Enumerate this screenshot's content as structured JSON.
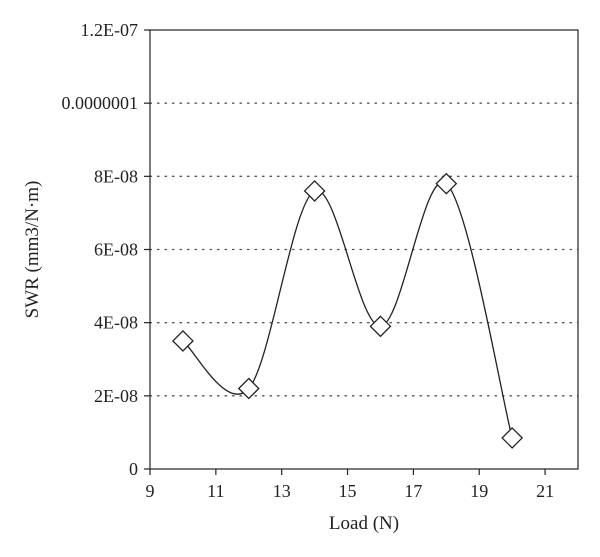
{
  "chart_data": {
    "type": "scatter",
    "title": "",
    "xlabel": "Load (N)",
    "ylabel": "SWR (mm3/N·m)",
    "xlim": [
      9,
      22
    ],
    "ylim": [
      0,
      1.2e-07
    ],
    "x_ticks": [
      9,
      11,
      13,
      15,
      17,
      19,
      21
    ],
    "x_tick_labels": [
      "9",
      "11",
      "13",
      "15",
      "17",
      "19",
      "21"
    ],
    "y_ticks": [
      0,
      2e-08,
      4e-08,
      6e-08,
      8e-08,
      1e-07,
      1.2e-07
    ],
    "y_tick_labels": [
      "0",
      "2E-08",
      "4E-08",
      "6E-08",
      "8E-08",
      "0.0000001",
      "1.2E-07"
    ],
    "grid": "horizontal dotted",
    "marker": "open-diamond",
    "line": "smooth",
    "series": [
      {
        "x": [
          10,
          12,
          14,
          16,
          18,
          20
        ],
        "values": [
          3.5e-08,
          2.2e-08,
          7.6e-08,
          3.9e-08,
          7.8e-08,
          8.5e-09
        ]
      }
    ]
  }
}
